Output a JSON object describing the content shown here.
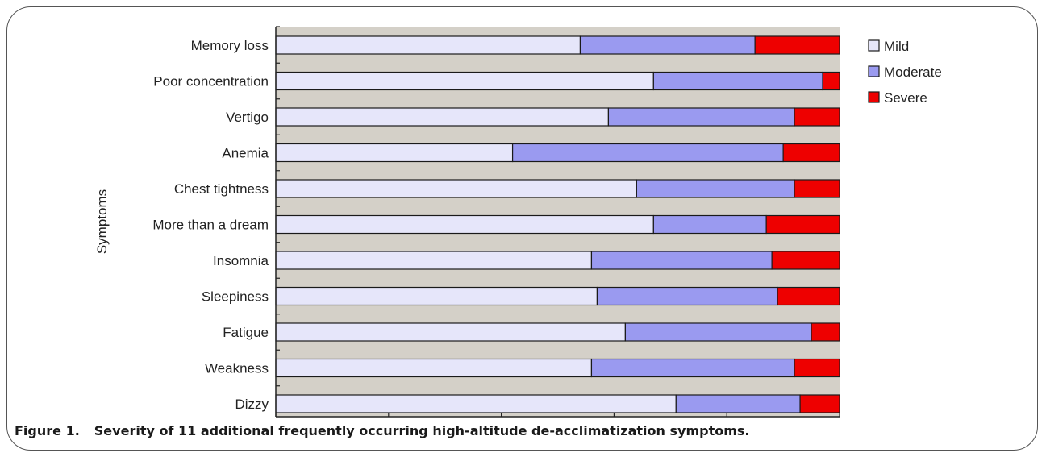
{
  "figure": {
    "number": "Figure 1.",
    "caption": "Severity of 11 additional frequently occurring high-altitude de-acclimatization symptoms."
  },
  "chart_data": {
    "type": "bar",
    "orientation": "horizontal",
    "stacked": true,
    "percent_stacked": true,
    "ylabel": "Symptoms",
    "xlabel": "",
    "xlim": [
      0,
      100
    ],
    "x_tick_labels_shown": false,
    "legend_position": "right",
    "categories": [
      "Memory loss",
      "Poor concentration",
      "Vertigo",
      "Anemia",
      "Chest tightness",
      "More than a dream",
      "Insomnia",
      "Sleepiness",
      "Fatigue",
      "Weakness",
      "Dizzy"
    ],
    "series": [
      {
        "name": "Mild",
        "color": "#e6e6fa",
        "values": [
          54,
          67,
          59,
          42,
          64,
          67,
          56,
          57,
          62,
          56,
          71
        ]
      },
      {
        "name": "Moderate",
        "color": "#9a9af0",
        "values": [
          31,
          30,
          33,
          48,
          28,
          20,
          32,
          32,
          33,
          36,
          22
        ]
      },
      {
        "name": "Severe",
        "color": "#ee0000",
        "values": [
          15,
          3,
          8,
          10,
          8,
          13,
          12,
          11,
          5,
          8,
          7
        ]
      }
    ],
    "plot_background": "#d4d0c8"
  }
}
